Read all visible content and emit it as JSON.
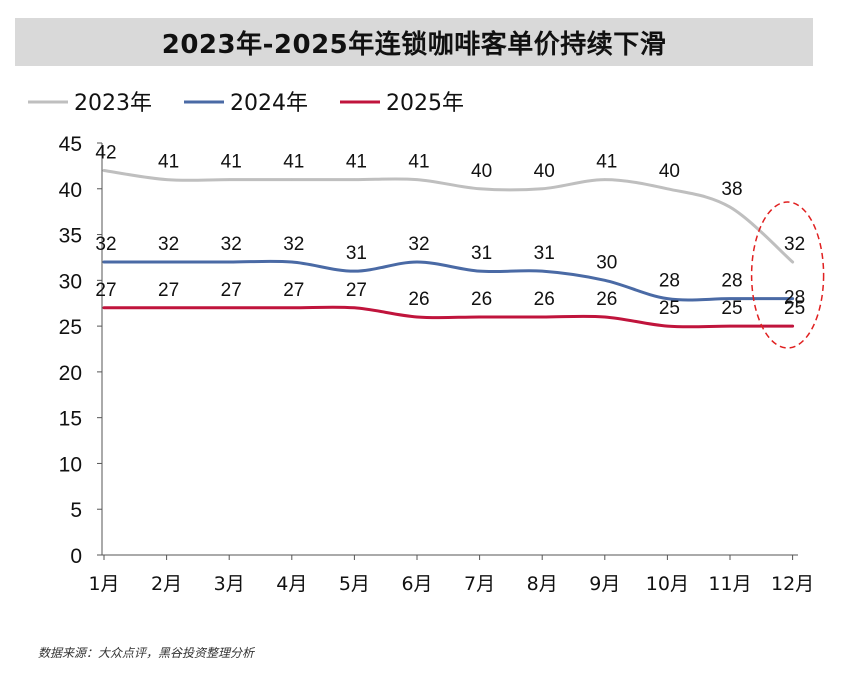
{
  "chart_data": {
    "type": "line",
    "title": "2023年-2025年连锁咖啡客单价持续下滑",
    "categories": [
      "1月",
      "2月",
      "3月",
      "4月",
      "5月",
      "6月",
      "7月",
      "8月",
      "9月",
      "10月",
      "11月",
      "12月"
    ],
    "ylim": [
      0,
      45
    ],
    "yticks": [
      0,
      5,
      10,
      15,
      20,
      25,
      30,
      35,
      40,
      45
    ],
    "grid": false,
    "legend_position": "top-left",
    "series": [
      {
        "name": "2023年",
        "color": "#bfbfbf",
        "values": [
          42,
          41,
          41,
          41,
          41,
          41,
          40,
          40,
          41,
          40,
          38,
          32
        ]
      },
      {
        "name": "2024年",
        "color": "#4a6aa5",
        "values": [
          32,
          32,
          32,
          32,
          31,
          32,
          31,
          31,
          30,
          28,
          28,
          28
        ]
      },
      {
        "name": "2025年",
        "color": "#c0143c",
        "values": [
          27,
          27,
          27,
          27,
          27,
          26,
          26,
          26,
          26,
          25,
          25,
          25
        ]
      }
    ],
    "annotation": {
      "type": "dashed-ellipse",
      "color": "#e02020",
      "target": "12月"
    }
  },
  "source": "数据来源：大众点评，黑谷投资整理分析"
}
